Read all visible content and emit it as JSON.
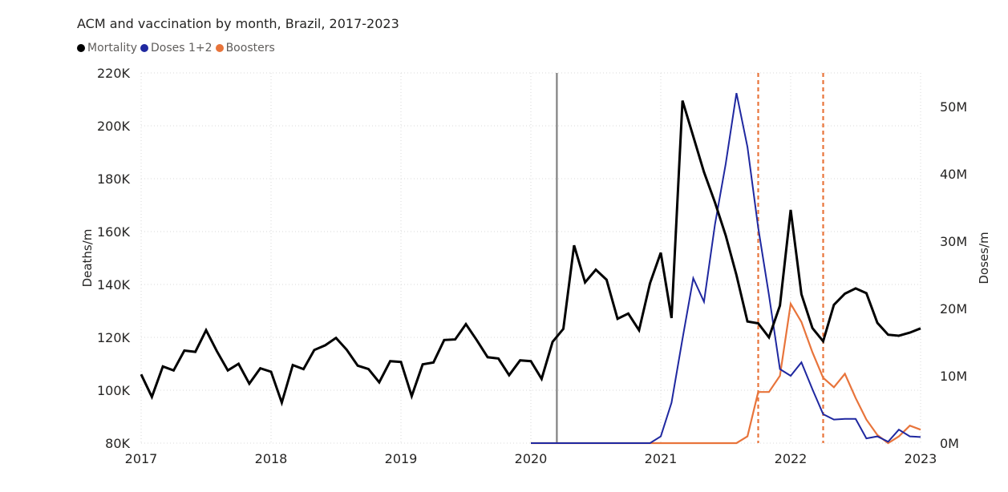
{
  "title": "ACM and vaccination by month, Brazil, 2017-2023",
  "colors": {
    "mortality": "#000000",
    "doses": "#1f28a0",
    "boosters": "#e8743b",
    "event_line": "#808080",
    "dashed_line": "#e8743b",
    "grid": "#d9d9d9"
  },
  "legend": [
    {
      "label": "Mortality",
      "color": "#000000"
    },
    {
      "label": "Doses 1+2",
      "color": "#1f28a0"
    },
    {
      "label": "Boosters",
      "color": "#e8743b"
    }
  ],
  "chart_data": {
    "type": "line",
    "title": "ACM and vaccination by month, Brazil, 2017-2023",
    "xlabel": "",
    "ylabel": "Deaths/m",
    "y2label": "Doses/m",
    "xlim": [
      2017.0,
      2023.0
    ],
    "ylim": [
      80000,
      220000
    ],
    "y2lim": [
      0,
      55000000
    ],
    "x_ticks": [
      2017,
      2018,
      2019,
      2020,
      2021,
      2022,
      2023
    ],
    "x_tick_labels": [
      "2017",
      "2018",
      "2019",
      "2020",
      "2021",
      "2022",
      "2023"
    ],
    "y_ticks": [
      80000,
      100000,
      120000,
      140000,
      160000,
      180000,
      200000,
      220000
    ],
    "y_tick_labels": [
      "80K",
      "100K",
      "120K",
      "140K",
      "160K",
      "180K",
      "200K",
      "220K"
    ],
    "y2_ticks": [
      0,
      10000000,
      20000000,
      30000000,
      40000000,
      50000000
    ],
    "y2_tick_labels": [
      "0M",
      "10M",
      "20M",
      "30M",
      "40M",
      "50M"
    ],
    "grid": true,
    "legend_position": "top-left",
    "vertical_markers": [
      {
        "x": 2020.2,
        "style": "solid"
      },
      {
        "x": 2021.75,
        "style": "dashed"
      },
      {
        "x": 2022.25,
        "style": "dashed"
      }
    ],
    "series": [
      {
        "name": "Mortality",
        "axis": "left",
        "x": [
          2017.0,
          2017.083,
          2017.167,
          2017.25,
          2017.333,
          2017.417,
          2017.5,
          2017.583,
          2017.667,
          2017.75,
          2017.833,
          2017.917,
          2018.0,
          2018.083,
          2018.167,
          2018.25,
          2018.333,
          2018.417,
          2018.5,
          2018.583,
          2018.667,
          2018.75,
          2018.833,
          2018.917,
          2019.0,
          2019.083,
          2019.167,
          2019.25,
          2019.333,
          2019.417,
          2019.5,
          2019.583,
          2019.667,
          2019.75,
          2019.833,
          2019.917,
          2020.0,
          2020.083,
          2020.167,
          2020.25,
          2020.333,
          2020.417,
          2020.5,
          2020.583,
          2020.667,
          2020.75,
          2020.833,
          2020.917,
          2021.0,
          2021.083,
          2021.167,
          2021.25,
          2021.333,
          2021.417,
          2021.5,
          2021.583,
          2021.667,
          2021.75,
          2021.833,
          2021.917,
          2022.0,
          2022.083,
          2022.167,
          2022.25,
          2022.333,
          2022.417,
          2022.5,
          2022.583,
          2022.667,
          2022.75,
          2022.833,
          2022.917,
          2023.0
        ],
        "values": [
          106000,
          97500,
          109000,
          107500,
          115000,
          114500,
          122700,
          114800,
          107500,
          110000,
          102500,
          108300,
          107000,
          95300,
          109500,
          108000,
          115200,
          117000,
          119800,
          115300,
          109300,
          108000,
          103000,
          111000,
          110700,
          97800,
          109800,
          110500,
          119000,
          119200,
          125000,
          119000,
          112500,
          112000,
          105700,
          111300,
          111000,
          104300,
          118300,
          123200,
          154800,
          140800,
          145600,
          141800,
          127000,
          129000,
          122700,
          140500,
          152000,
          127300,
          209500,
          196000,
          182500,
          171000,
          158500,
          143500,
          126000,
          125300,
          120000,
          132000,
          168200,
          136300,
          123500,
          118500,
          132300,
          136500,
          138500,
          136700,
          125500,
          121000,
          120600,
          121800,
          123400
        ]
      },
      {
        "name": "Doses 1+2",
        "axis": "right",
        "x": [
          2020.0,
          2020.917,
          2021.0,
          2021.083,
          2021.167,
          2021.25,
          2021.333,
          2021.417,
          2021.5,
          2021.583,
          2021.667,
          2021.75,
          2021.833,
          2021.917,
          2022.0,
          2022.083,
          2022.167,
          2022.25,
          2022.333,
          2022.417,
          2022.5,
          2022.583,
          2022.667,
          2022.75,
          2022.833,
          2022.917,
          2023.0
        ],
        "values": [
          0,
          0,
          1000000,
          6000000,
          15500000,
          24500000,
          21000000,
          32500000,
          41500000,
          52000000,
          44000000,
          32000000,
          22000000,
          11000000,
          10000000,
          12000000,
          8000000,
          4300000,
          3500000,
          3600000,
          3600000,
          700000,
          1000000,
          200000,
          2000000,
          1000000,
          900000
        ]
      },
      {
        "name": "Boosters",
        "axis": "right",
        "x": [
          2020.0,
          2021.583,
          2021.667,
          2021.75,
          2021.833,
          2021.917,
          2022.0,
          2022.083,
          2022.167,
          2022.25,
          2022.333,
          2022.417,
          2022.5,
          2022.583,
          2022.667,
          2022.75,
          2022.833,
          2022.917,
          2023.0
        ],
        "values": [
          0,
          0,
          1000000,
          7600000,
          7600000,
          10000000,
          20700000,
          18000000,
          13500000,
          9700000,
          8300000,
          10300000,
          6700000,
          3500000,
          1200000,
          0,
          1000000,
          2600000,
          2000000
        ]
      }
    ]
  }
}
